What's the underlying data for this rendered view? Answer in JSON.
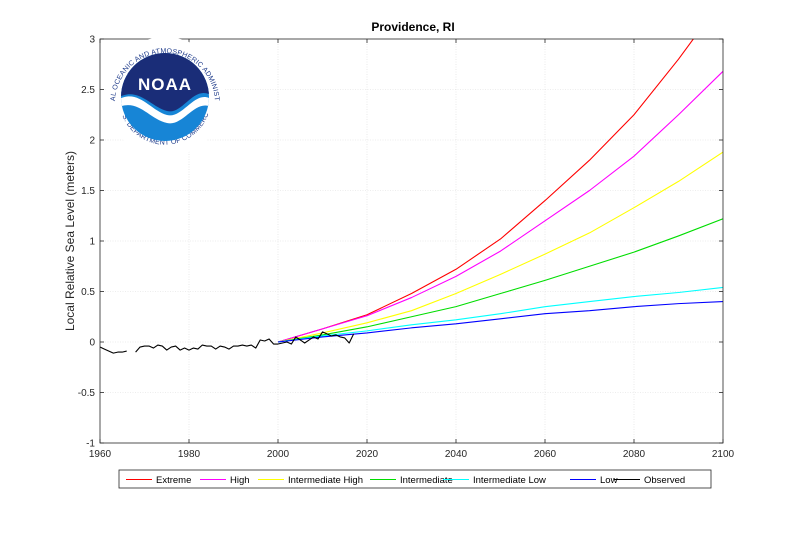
{
  "chart_data": {
    "type": "line",
    "title": "Providence, RI",
    "xlabel": "",
    "ylabel": "Local Relative Sea Level (meters)",
    "xlim": [
      1960,
      2100
    ],
    "ylim": [
      -1,
      3
    ],
    "xticks": [
      1960,
      1980,
      2000,
      2020,
      2040,
      2060,
      2080,
      2100
    ],
    "yticks": [
      -1,
      -0.5,
      0,
      0.5,
      1,
      1.5,
      2,
      2.5,
      3
    ],
    "grid": true,
    "legend_position": "bottom",
    "series": [
      {
        "name": "Extreme",
        "color": "#ff0000",
        "x": [
          2000,
          2010,
          2020,
          2030,
          2040,
          2050,
          2060,
          2070,
          2080,
          2090,
          2100
        ],
        "y": [
          0.0,
          0.13,
          0.27,
          0.48,
          0.72,
          1.02,
          1.4,
          1.8,
          2.25,
          2.8,
          3.4
        ]
      },
      {
        "name": "High",
        "color": "#ff00ff",
        "x": [
          2000,
          2010,
          2020,
          2030,
          2040,
          2050,
          2060,
          2070,
          2080,
          2090,
          2100
        ],
        "y": [
          0.0,
          0.13,
          0.26,
          0.44,
          0.65,
          0.9,
          1.2,
          1.5,
          1.84,
          2.25,
          2.68
        ]
      },
      {
        "name": "Intermediate High",
        "color": "#ffff00",
        "x": [
          2000,
          2010,
          2020,
          2030,
          2040,
          2050,
          2060,
          2070,
          2080,
          2090,
          2100
        ],
        "y": [
          0.0,
          0.09,
          0.19,
          0.31,
          0.48,
          0.67,
          0.87,
          1.08,
          1.33,
          1.59,
          1.88
        ]
      },
      {
        "name": "Intermediate",
        "color": "#00dd00",
        "x": [
          2000,
          2010,
          2020,
          2030,
          2040,
          2050,
          2060,
          2070,
          2080,
          2090,
          2100
        ],
        "y": [
          0.0,
          0.07,
          0.15,
          0.25,
          0.35,
          0.48,
          0.61,
          0.75,
          0.89,
          1.05,
          1.22
        ]
      },
      {
        "name": "Intermediate Low",
        "color": "#00ffff",
        "x": [
          2000,
          2010,
          2020,
          2030,
          2040,
          2050,
          2060,
          2070,
          2080,
          2090,
          2100
        ],
        "y": [
          0.0,
          0.06,
          0.11,
          0.17,
          0.22,
          0.28,
          0.35,
          0.4,
          0.45,
          0.49,
          0.54
        ]
      },
      {
        "name": "Low",
        "color": "#0000ff",
        "x": [
          2000,
          2010,
          2020,
          2030,
          2040,
          2050,
          2060,
          2070,
          2080,
          2090,
          2100
        ],
        "y": [
          0.0,
          0.05,
          0.09,
          0.14,
          0.18,
          0.23,
          0.28,
          0.31,
          0.35,
          0.38,
          0.4
        ]
      },
      {
        "name": "Observed",
        "color": "#000000",
        "segments": [
          {
            "x": [
              1960,
              1961,
              1962,
              1963,
              1964,
              1965,
              1966
            ],
            "y": [
              -0.05,
              -0.07,
              -0.09,
              -0.11,
              -0.1,
              -0.1,
              -0.09
            ]
          },
          {
            "x": [
              1968,
              1969,
              1970,
              1971,
              1972,
              1973,
              1974,
              1975,
              1976,
              1977,
              1978,
              1979,
              1980,
              1981,
              1982,
              1983,
              1984,
              1985,
              1986,
              1987,
              1988,
              1989,
              1990,
              1991,
              1992,
              1993,
              1994,
              1995,
              1996,
              1997,
              1998,
              1999,
              2000,
              2001,
              2002,
              2003,
              2004,
              2005,
              2006,
              2007,
              2008,
              2009,
              2010,
              2011,
              2012,
              2013,
              2014,
              2015,
              2016,
              2017
            ],
            "y": [
              -0.1,
              -0.05,
              -0.04,
              -0.04,
              -0.06,
              -0.03,
              -0.04,
              -0.08,
              -0.05,
              -0.04,
              -0.08,
              -0.06,
              -0.08,
              -0.06,
              -0.07,
              -0.03,
              -0.04,
              -0.04,
              -0.07,
              -0.04,
              -0.05,
              -0.07,
              -0.04,
              -0.04,
              -0.03,
              -0.04,
              -0.03,
              -0.06,
              0.02,
              0.01,
              0.03,
              -0.02,
              -0.02,
              -0.01,
              0.0,
              -0.02,
              0.05,
              0.02,
              -0.01,
              0.02,
              0.05,
              0.03,
              0.1,
              0.08,
              0.06,
              0.07,
              0.05,
              0.04,
              -0.01,
              0.08
            ]
          }
        ]
      }
    ]
  },
  "logo": {
    "word": "NOAA",
    "arc_text": "NATIONAL OCEANIC AND ATMOSPHERIC ADMINISTRATION",
    "bottom_text": "U.S. DEPARTMENT OF COMMERCE",
    "colors": {
      "navy": "#1a2d78",
      "sky": "#1785d6",
      "ring": "#ffffff"
    }
  }
}
